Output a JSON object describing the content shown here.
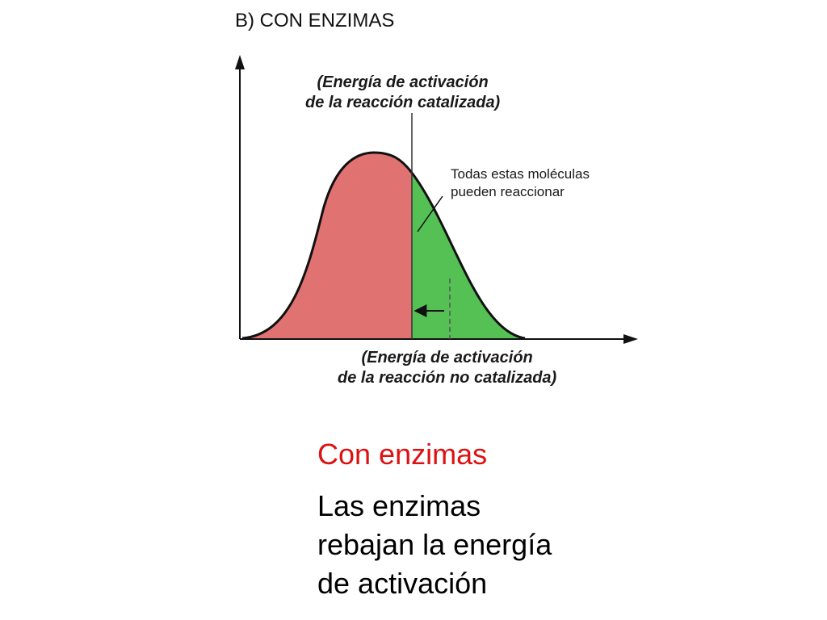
{
  "panel_title": "B) CON ENZIMAS",
  "labels": {
    "catalyzed": {
      "line1": "(Energía de activación",
      "line2": "de la reacción catalizada)"
    },
    "uncatalyzed": {
      "line1": "(Energía de activación",
      "line2": "de la reacción no catalizada)"
    },
    "can_react": {
      "line1": "Todas estas moléculas",
      "line2": "pueden reaccionar"
    }
  },
  "caption": {
    "heading": "Con enzimas",
    "body": [
      "Las enzimas",
      "rebajan la energía",
      "de activación"
    ]
  },
  "colors": {
    "below_threshold_fill": "#e07272",
    "above_threshold_fill": "#55c155",
    "curve_stroke": "#111111",
    "heading_text": "#dd1111"
  }
}
